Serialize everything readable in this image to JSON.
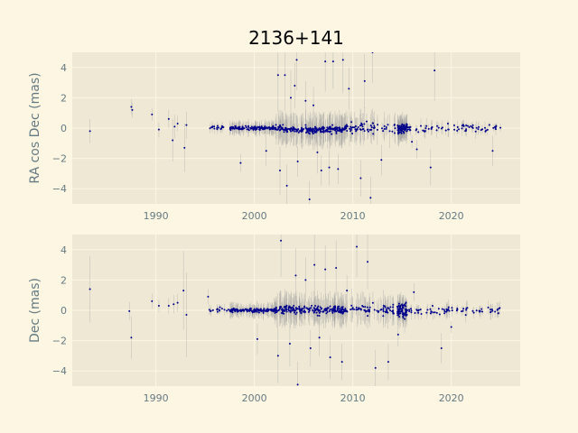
{
  "title": "2136+141",
  "colors": {
    "page_bg": "#fdf6e3",
    "axes_bg": "#eee8d5",
    "grid": "#fdf6e3",
    "point": "#00008b",
    "errorbar": "#9a9a9a",
    "tick_text": "#657b83"
  },
  "chart_data": [
    {
      "type": "scatter",
      "title": "2136+141",
      "xlabel": "",
      "ylabel": "RA cos Dec (mas)",
      "xlim": [
        1981.5,
        2027
      ],
      "ylim": [
        -5,
        5
      ],
      "xticks": [
        1990,
        2000,
        2010,
        2020
      ],
      "yticks": [
        -4,
        -2,
        0,
        2,
        4
      ],
      "grid": true,
      "points": [
        {
          "x": 1983.3,
          "y": -0.2,
          "e": 0.8
        },
        {
          "x": 1987.5,
          "y": 1.4,
          "e": 0.5
        },
        {
          "x": 1987.6,
          "y": 1.2,
          "e": 0.5
        },
        {
          "x": 1989.6,
          "y": 0.9,
          "e": 0.4
        },
        {
          "x": 1990.3,
          "y": -0.1,
          "e": 0.5
        },
        {
          "x": 1991.3,
          "y": 0.6,
          "e": 0.6
        },
        {
          "x": 1991.7,
          "y": -0.8,
          "e": 1.4
        },
        {
          "x": 1991.9,
          "y": 0.1,
          "e": 0.8
        },
        {
          "x": 1992.2,
          "y": 0.3,
          "e": 0.5
        },
        {
          "x": 1992.9,
          "y": -1.3,
          "e": 1.6
        },
        {
          "x": 1993.1,
          "y": 0.2,
          "e": 0.9
        },
        {
          "x": 1998.6,
          "y": -2.3,
          "e": 0.6
        },
        {
          "x": 2001.2,
          "y": -1.5,
          "e": 1.0
        },
        {
          "x": 2002.4,
          "y": 3.5,
          "e": 2.4
        },
        {
          "x": 2003.1,
          "y": 3.5,
          "e": 2.4
        },
        {
          "x": 2003.7,
          "y": 2.0,
          "e": 1.8
        },
        {
          "x": 2004.1,
          "y": 2.8,
          "e": 1.5
        },
        {
          "x": 2004.3,
          "y": 4.5,
          "e": 2.0
        },
        {
          "x": 2002.6,
          "y": -2.8,
          "e": 1.6
        },
        {
          "x": 2003.3,
          "y": -3.8,
          "e": 1.4
        },
        {
          "x": 2004.4,
          "y": -2.2,
          "e": 1.0
        },
        {
          "x": 2005.2,
          "y": 1.8,
          "e": 1.3
        },
        {
          "x": 2005.6,
          "y": -4.7,
          "e": 1.2
        },
        {
          "x": 2006.0,
          "y": 1.5,
          "e": 1.2
        },
        {
          "x": 2006.4,
          "y": -1.6,
          "e": 1.4
        },
        {
          "x": 2006.8,
          "y": -2.8,
          "e": 1.0
        },
        {
          "x": 2007.2,
          "y": 4.4,
          "e": 2.0
        },
        {
          "x": 2007.6,
          "y": -2.6,
          "e": 1.2
        },
        {
          "x": 2008.0,
          "y": 4.4,
          "e": 1.8
        },
        {
          "x": 2008.5,
          "y": -2.7,
          "e": 1.0
        },
        {
          "x": 2009.0,
          "y": 4.5,
          "e": 2.2
        },
        {
          "x": 2009.6,
          "y": 2.6,
          "e": 1.4
        },
        {
          "x": 2010.8,
          "y": -3.3,
          "e": 1.2
        },
        {
          "x": 2011.2,
          "y": 3.1,
          "e": 1.8
        },
        {
          "x": 2011.8,
          "y": -4.6,
          "e": 1.4
        },
        {
          "x": 2012.0,
          "y": 5.0,
          "e": 2.0
        },
        {
          "x": 2012.9,
          "y": -2.1,
          "e": 1.0
        },
        {
          "x": 2016.0,
          "y": -0.9,
          "e": 0.4
        },
        {
          "x": 2016.5,
          "y": -1.4,
          "e": 0.6
        },
        {
          "x": 2017.9,
          "y": -2.6,
          "e": 1.2
        },
        {
          "x": 2018.3,
          "y": 3.8,
          "e": 2.0
        },
        {
          "x": 2024.2,
          "y": -1.5,
          "e": 1.0
        }
      ]
    },
    {
      "type": "scatter",
      "title": "",
      "xlabel": "",
      "ylabel": "Dec (mas)",
      "xlim": [
        1981.5,
        2027
      ],
      "ylim": [
        -5,
        5
      ],
      "xticks": [
        1990,
        2000,
        2010,
        2020
      ],
      "yticks": [
        -4,
        -2,
        0,
        2,
        4
      ],
      "grid": true,
      "points": [
        {
          "x": 1983.3,
          "y": 1.4,
          "e": 2.2
        },
        {
          "x": 1987.3,
          "y": -0.05,
          "e": 0.6
        },
        {
          "x": 1987.5,
          "y": -1.8,
          "e": 1.4
        },
        {
          "x": 1989.6,
          "y": 0.6,
          "e": 0.5
        },
        {
          "x": 1990.3,
          "y": 0.3,
          "e": 0.4
        },
        {
          "x": 1991.3,
          "y": 0.3,
          "e": 0.5
        },
        {
          "x": 1991.8,
          "y": 0.4,
          "e": 0.6
        },
        {
          "x": 1992.2,
          "y": 0.5,
          "e": 0.6
        },
        {
          "x": 1992.8,
          "y": 1.3,
          "e": 2.6
        },
        {
          "x": 1993.1,
          "y": -0.3,
          "e": 2.8
        },
        {
          "x": 1995.3,
          "y": 0.9,
          "e": 0.5
        },
        {
          "x": 2000.3,
          "y": -1.9,
          "e": 1.0
        },
        {
          "x": 2002.4,
          "y": -3.0,
          "e": 1.8
        },
        {
          "x": 2002.7,
          "y": 4.6,
          "e": 2.4
        },
        {
          "x": 2003.6,
          "y": -2.2,
          "e": 1.5
        },
        {
          "x": 2004.2,
          "y": 2.3,
          "e": 1.8
        },
        {
          "x": 2004.4,
          "y": -4.9,
          "e": 1.5
        },
        {
          "x": 2005.2,
          "y": 2.0,
          "e": 1.5
        },
        {
          "x": 2005.7,
          "y": -2.5,
          "e": 1.2
        },
        {
          "x": 2006.1,
          "y": 3.0,
          "e": 2.0
        },
        {
          "x": 2006.6,
          "y": -1.8,
          "e": 1.2
        },
        {
          "x": 2007.2,
          "y": 2.7,
          "e": 1.6
        },
        {
          "x": 2007.7,
          "y": -3.1,
          "e": 1.4
        },
        {
          "x": 2008.3,
          "y": 2.8,
          "e": 1.8
        },
        {
          "x": 2008.9,
          "y": -3.4,
          "e": 1.2
        },
        {
          "x": 2009.4,
          "y": 1.3,
          "e": 1.0
        },
        {
          "x": 2010.4,
          "y": 4.2,
          "e": 2.0
        },
        {
          "x": 2011.5,
          "y": 3.2,
          "e": 1.8
        },
        {
          "x": 2012.3,
          "y": -3.8,
          "e": 1.2
        },
        {
          "x": 2013.6,
          "y": -3.4,
          "e": 1.2
        },
        {
          "x": 2014.6,
          "y": -1.6,
          "e": 0.8
        },
        {
          "x": 2016.2,
          "y": 1.2,
          "e": 0.6
        },
        {
          "x": 2019.0,
          "y": -2.5,
          "e": 1.0
        },
        {
          "x": 2020.0,
          "y": -1.1,
          "e": 0.4
        }
      ]
    }
  ]
}
